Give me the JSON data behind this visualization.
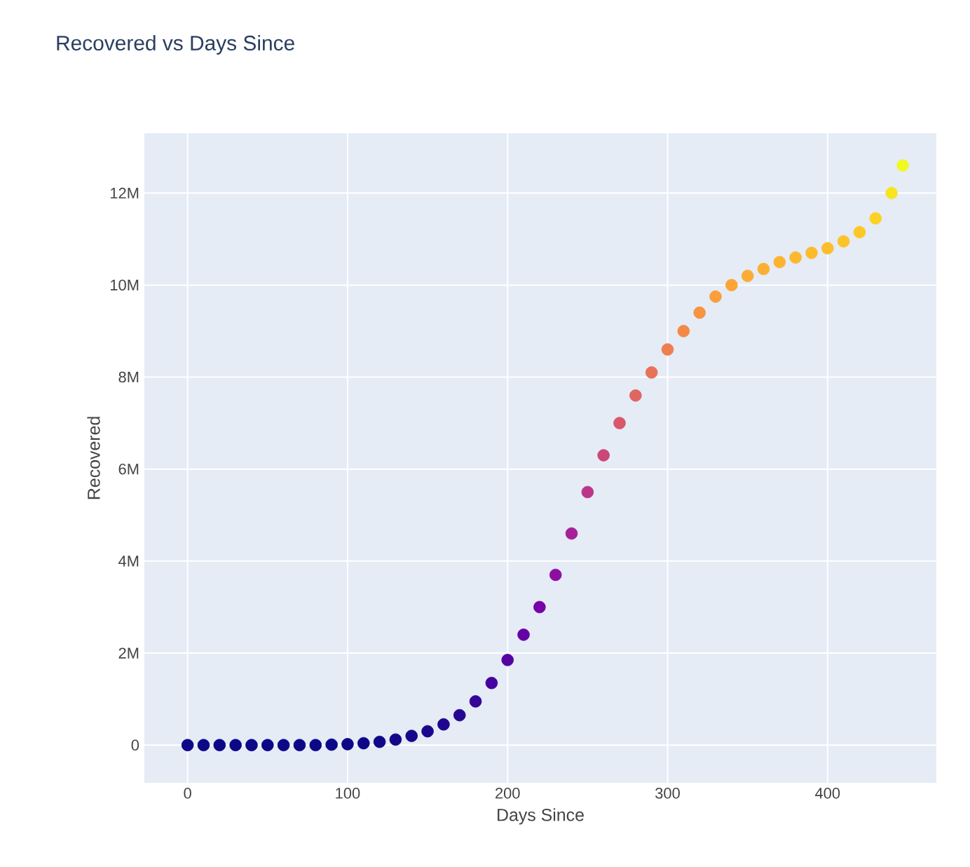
{
  "chart_data": {
    "type": "scatter",
    "title": "Recovered vs Days Since",
    "xlabel": "Days Since",
    "ylabel": "Recovered",
    "x": [
      0,
      10,
      20,
      30,
      40,
      50,
      60,
      70,
      80,
      90,
      100,
      110,
      120,
      130,
      140,
      150,
      160,
      170,
      180,
      190,
      200,
      210,
      220,
      230,
      240,
      250,
      260,
      270,
      280,
      290,
      300,
      310,
      320,
      330,
      340,
      350,
      360,
      370,
      380,
      390,
      400,
      410,
      420,
      430,
      440,
      447
    ],
    "values": [
      0,
      0,
      0,
      0,
      0,
      0,
      0,
      0,
      0,
      10000,
      20000,
      40000,
      70000,
      120000,
      200000,
      300000,
      450000,
      650000,
      950000,
      1350000,
      1850000,
      2400000,
      3000000,
      3700000,
      4600000,
      5500000,
      6300000,
      7000000,
      7600000,
      8100000,
      8600000,
      9000000,
      9400000,
      9750000,
      10000000,
      10200000,
      10350000,
      10500000,
      10600000,
      10700000,
      10800000,
      10950000,
      11150000,
      11450000,
      12000000,
      12600000
    ],
    "colors": [
      "#0d0887",
      "#0d0887",
      "#0d0887",
      "#0d0887",
      "#0d0887",
      "#0d0887",
      "#0d0887",
      "#0d0887",
      "#0d0887",
      "#0d0887",
      "#0e0888",
      "#0e0888",
      "#0f0888",
      "#120889",
      "#15078a",
      "#19078c",
      "#1f068f",
      "#270692",
      "#340597",
      "#44039e",
      "#5402a2",
      "#6602a5",
      "#7804a7",
      "#8d0fa2",
      "#a62097",
      "#bb3588",
      "#ca4778",
      "#d8576b",
      "#e16561",
      "#e87258",
      "#ef7e50",
      "#f38948",
      "#f79441",
      "#fb9e3b",
      "#fba537",
      "#fcab34",
      "#fcaf32",
      "#fcb430",
      "#fcb82e",
      "#fcbb2d",
      "#fcbe2c",
      "#fdc32a",
      "#fdc827",
      "#fbd225",
      "#f6e523",
      "#f0f921"
    ],
    "xlim": [
      -27,
      468
    ],
    "ylim": [
      -820000,
      13300000
    ],
    "xticks": [
      0,
      100,
      200,
      300,
      400
    ],
    "yticks": [
      0,
      {
        "value": 2000000,
        "label": "2M"
      },
      {
        "value": 4000000,
        "label": "4M"
      },
      {
        "value": 6000000,
        "label": "6M"
      },
      {
        "value": 8000000,
        "label": "8M"
      },
      {
        "value": 10000000,
        "label": "10M"
      },
      {
        "value": 12000000,
        "label": "12M"
      }
    ],
    "grid": true
  }
}
